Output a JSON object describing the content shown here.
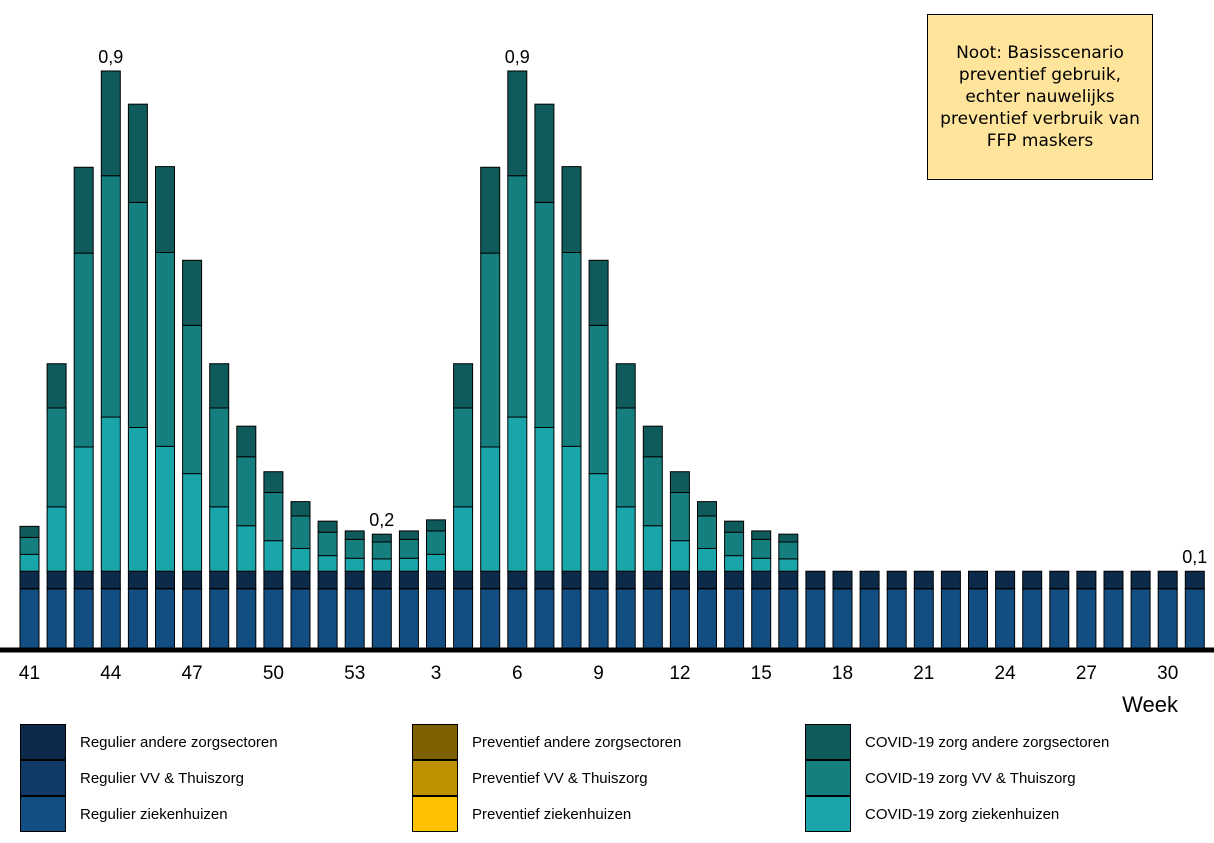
{
  "chart_data": {
    "type": "bar",
    "stacked": true,
    "xlabel": "Week",
    "ylabel": "",
    "ylim": [
      0,
      0.95
    ],
    "grid": false,
    "legend_position": "bottom",
    "categories": [
      "41",
      "42",
      "43",
      "44",
      "45",
      "46",
      "47",
      "48",
      "49",
      "50",
      "51",
      "52",
      "53",
      "1",
      "2",
      "3",
      "4",
      "5",
      "6",
      "7",
      "8",
      "9",
      "10",
      "11",
      "12",
      "13",
      "14",
      "15",
      "16",
      "17",
      "18",
      "19",
      "20",
      "21",
      "22",
      "23",
      "24",
      "25",
      "26",
      "27",
      "28",
      "29",
      "30",
      "31"
    ],
    "x_tick_labels": [
      "41",
      "44",
      "47",
      "50",
      "53",
      "3",
      "6",
      "9",
      "12",
      "15",
      "18",
      "21",
      "24",
      "27",
      "30"
    ],
    "series": [
      {
        "name": "Regulier ziekenhuizen",
        "color": "#134e82",
        "values": [
          0.091,
          0.091,
          0.091,
          0.091,
          0.091,
          0.091,
          0.091,
          0.091,
          0.091,
          0.091,
          0.091,
          0.091,
          0.091,
          0.091,
          0.091,
          0.091,
          0.091,
          0.091,
          0.091,
          0.091,
          0.091,
          0.091,
          0.091,
          0.091,
          0.091,
          0.091,
          0.091,
          0.091,
          0.091,
          0.091,
          0.091,
          0.091,
          0.091,
          0.091,
          0.091,
          0.091,
          0.091,
          0.091,
          0.091,
          0.091,
          0.091,
          0.091,
          0.091,
          0.091
        ]
      },
      {
        "name": "Regulier VV & Thuiszorg",
        "color": "#0f3a66",
        "values": [
          0.0005,
          0.0005,
          0.0005,
          0.0005,
          0.0005,
          0.0005,
          0.0005,
          0.0005,
          0.0005,
          0.0005,
          0.0005,
          0.0005,
          0.0005,
          0.0005,
          0.0005,
          0.0005,
          0.0005,
          0.0005,
          0.0005,
          0.0005,
          0.0005,
          0.0005,
          0.0005,
          0.0005,
          0.0005,
          0.0005,
          0.0005,
          0.0005,
          0.0005,
          0.0005,
          0.0005,
          0.0005,
          0.0005,
          0.0005,
          0.0005,
          0.0005,
          0.0005,
          0.0005,
          0.0005,
          0.0005,
          0.0005,
          0.0005,
          0.0005,
          0.0005
        ]
      },
      {
        "name": "Regulier andere zorgsectoren",
        "color": "#0c2a4a",
        "values": [
          0.0265,
          0.0265,
          0.0265,
          0.0265,
          0.0265,
          0.0265,
          0.0265,
          0.0265,
          0.0265,
          0.0265,
          0.0265,
          0.0265,
          0.0265,
          0.0265,
          0.0265,
          0.0265,
          0.0265,
          0.0265,
          0.0265,
          0.0265,
          0.0265,
          0.0265,
          0.0265,
          0.0265,
          0.0265,
          0.0265,
          0.0265,
          0.0265,
          0.0265,
          0.0265,
          0.0265,
          0.0265,
          0.0265,
          0.0265,
          0.0265,
          0.0265,
          0.0265,
          0.0265,
          0.0265,
          0.0265,
          0.0265,
          0.0265,
          0.0265,
          0.0265
        ]
      },
      {
        "name": "Preventief ziekenhuizen",
        "color": "#ffc000",
        "values": [
          0,
          0,
          0,
          0,
          0,
          0,
          0,
          0,
          0,
          0,
          0,
          0,
          0,
          0,
          0,
          0,
          0,
          0,
          0,
          0,
          0,
          0,
          0,
          0,
          0,
          0,
          0,
          0,
          0,
          0,
          0,
          0,
          0,
          0,
          0,
          0,
          0,
          0,
          0,
          0,
          0,
          0,
          0,
          0
        ]
      },
      {
        "name": "Preventief VV & Thuiszorg",
        "color": "#bf9000",
        "values": [
          0,
          0,
          0,
          0,
          0,
          0,
          0,
          0,
          0,
          0,
          0,
          0,
          0,
          0,
          0,
          0,
          0,
          0,
          0,
          0,
          0,
          0,
          0,
          0,
          0,
          0,
          0,
          0,
          0,
          0,
          0,
          0,
          0,
          0,
          0,
          0,
          0,
          0,
          0,
          0,
          0,
          0,
          0,
          0
        ]
      },
      {
        "name": "Preventief andere zorgsectoren",
        "color": "#7f6000",
        "values": [
          0,
          0,
          0,
          0,
          0,
          0,
          0,
          0,
          0,
          0,
          0,
          0,
          0,
          0,
          0,
          0,
          0,
          0,
          0,
          0,
          0,
          0,
          0,
          0,
          0,
          0,
          0,
          0,
          0,
          0,
          0,
          0,
          0,
          0,
          0,
          0,
          0,
          0,
          0,
          0,
          0,
          0,
          0,
          0
        ]
      },
      {
        "name": "COVID-19 zorg ziekenhuizen",
        "color": "#1aa5ab",
        "values": [
          0.026,
          0.099,
          0.191,
          0.237,
          0.221,
          0.192,
          0.15,
          0.099,
          0.07,
          0.047,
          0.035,
          0.024,
          0.02,
          0.019,
          0.02,
          0.026,
          0.099,
          0.191,
          0.237,
          0.221,
          0.192,
          0.15,
          0.099,
          0.07,
          0.047,
          0.035,
          0.024,
          0.02,
          0.019,
          0,
          0,
          0,
          0,
          0,
          0,
          0,
          0,
          0,
          0,
          0,
          0,
          0,
          0,
          0
        ]
      },
      {
        "name": "COVID-19 zorg VV & Thuiszorg",
        "color": "#157f80",
        "values": [
          0.026,
          0.152,
          0.298,
          0.371,
          0.346,
          0.298,
          0.228,
          0.152,
          0.106,
          0.074,
          0.05,
          0.036,
          0.029,
          0.026,
          0.029,
          0.036,
          0.152,
          0.298,
          0.371,
          0.346,
          0.298,
          0.228,
          0.152,
          0.106,
          0.074,
          0.05,
          0.036,
          0.029,
          0.026,
          0,
          0,
          0,
          0,
          0,
          0,
          0,
          0,
          0,
          0,
          0,
          0,
          0,
          0,
          0
        ]
      },
      {
        "name": "COVID-19 zorg andere zorgsectoren",
        "color": "#0f5b5b",
        "values": [
          0.017,
          0.068,
          0.132,
          0.161,
          0.151,
          0.132,
          0.1,
          0.068,
          0.047,
          0.032,
          0.022,
          0.017,
          0.013,
          0.012,
          0.013,
          0.017,
          0.068,
          0.132,
          0.161,
          0.151,
          0.132,
          0.1,
          0.068,
          0.047,
          0.032,
          0.022,
          0.017,
          0.013,
          0.012,
          0,
          0,
          0,
          0,
          0,
          0,
          0,
          0,
          0,
          0,
          0,
          0,
          0,
          0,
          0
        ]
      }
    ],
    "data_labels": [
      {
        "category": "44",
        "text": "0,9"
      },
      {
        "category": "1",
        "text": "0,2"
      },
      {
        "category": "6",
        "text": "0,9"
      },
      {
        "category": "31",
        "text": "0,1"
      }
    ],
    "annotation": "Noot: Basisscenario preventief gebruik, echter nauwelijks preventief verbruik van FFP maskers"
  },
  "legend": [
    {
      "label": "Regulier andere zorgsectoren",
      "color": "#0c2a4a"
    },
    {
      "label": "Preventief andere zorgsectoren",
      "color": "#7f6000"
    },
    {
      "label": "COVID-19 zorg andere zorgsectoren",
      "color": "#0f5b5b"
    },
    {
      "label": "Regulier VV & Thuiszorg",
      "color": "#0f3a66"
    },
    {
      "label": "Preventief VV & Thuiszorg",
      "color": "#bf9000"
    },
    {
      "label": "COVID-19 zorg VV & Thuiszorg",
      "color": "#157f80"
    },
    {
      "label": "Regulier ziekenhuizen",
      "color": "#134e82"
    },
    {
      "label": "Preventief ziekenhuizen",
      "color": "#ffc000"
    },
    {
      "label": "COVID-19 zorg ziekenhuizen",
      "color": "#1aa5ab"
    }
  ]
}
